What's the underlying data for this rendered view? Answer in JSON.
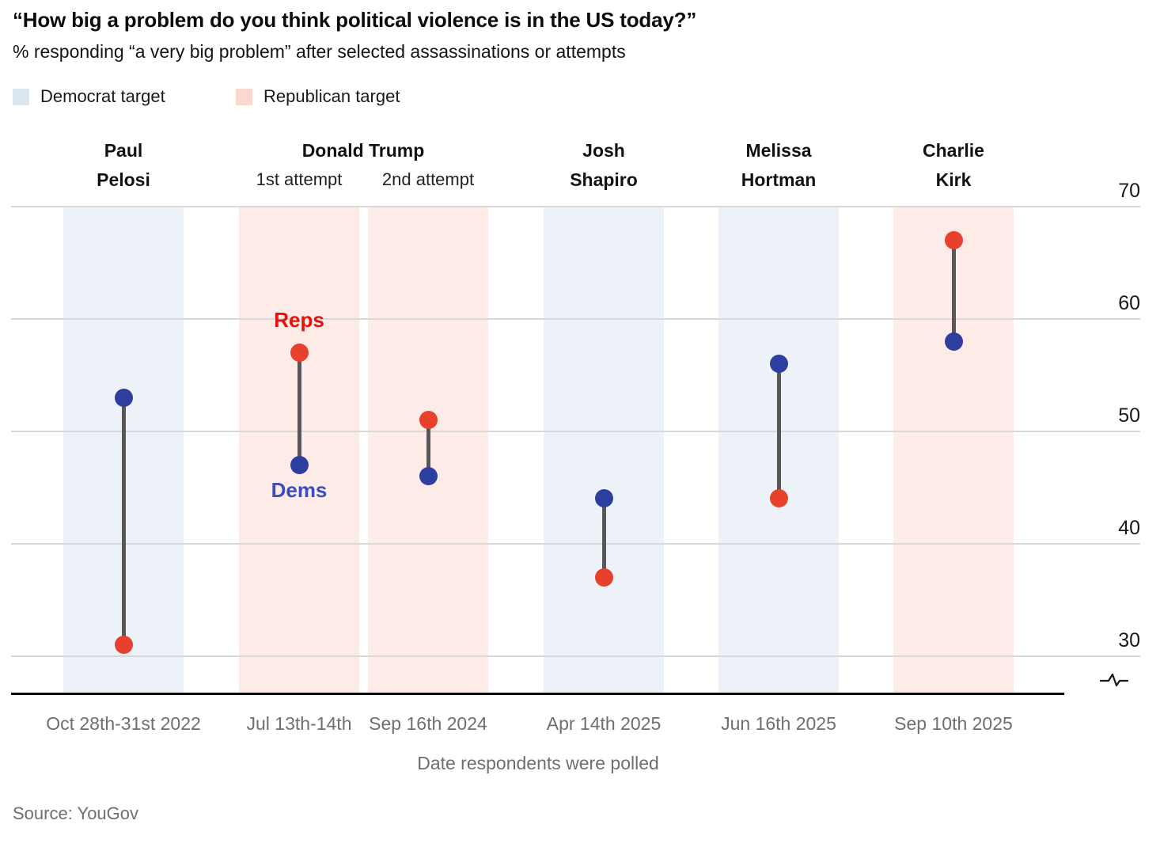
{
  "title": "“How big a problem do you think political violence is in the US today?”",
  "subtitle": "% responding “a very big problem” after selected assassinations or attempts",
  "legend": [
    {
      "label": "Democrat target",
      "color": "#d9e6ef"
    },
    {
      "label": "Republican target",
      "color": "#f9d8d1"
    }
  ],
  "footer": {
    "xlabel": "Date respondents were polled",
    "source": "Source: YouGov"
  },
  "chart_data": {
    "type": "dumbbell",
    "ylim": [
      30,
      70
    ],
    "yticks": [
      70,
      60,
      50,
      40,
      30
    ],
    "axis_break": true,
    "grid": true,
    "series_colors": {
      "dem": "#2d3e9e",
      "rep": "#e7402d"
    },
    "annotation_colors": {
      "rep": "#e3120b",
      "dem": "#3b4cc0"
    },
    "band_colors": {
      "Democrat": "#ecf2f7",
      "Republican": "#fcebe6"
    },
    "columns": [
      {
        "event": "Paul Pelosi",
        "name_lines": [
          "Paul",
          "Pelosi"
        ],
        "date": "Oct 28th-31st 2022",
        "target": "Democrat",
        "dem": 53,
        "rep": 31
      },
      {
        "event": "Donald Trump 1st attempt",
        "group": "Donald Trump",
        "name_lines": [
          "1st attempt"
        ],
        "date": "Jul 13th-14th",
        "target": "Republican",
        "dem": 47,
        "rep": 57,
        "annotations": {
          "rep": "Reps",
          "dem": "Dems"
        }
      },
      {
        "event": "Donald Trump 2nd attempt",
        "group": "Donald Trump",
        "name_lines": [
          "2nd attempt"
        ],
        "date": "Sep 16th 2024",
        "target": "Republican",
        "dem": 46,
        "rep": 51
      },
      {
        "event": "Josh Shapiro",
        "name_lines": [
          "Josh",
          "Shapiro"
        ],
        "date": "Apr 14th 2025",
        "target": "Democrat",
        "dem": 44,
        "rep": 37
      },
      {
        "event": "Melissa Hortman",
        "name_lines": [
          "Melissa",
          "Hortman"
        ],
        "date": "Jun 16th 2025",
        "target": "Democrat",
        "dem": 56,
        "rep": 44
      },
      {
        "event": "Charlie Kirk",
        "name_lines": [
          "Charlie",
          "Kirk"
        ],
        "date": "Sep 10th 2025",
        "target": "Republican",
        "dem": 58,
        "rep": 67
      }
    ]
  }
}
